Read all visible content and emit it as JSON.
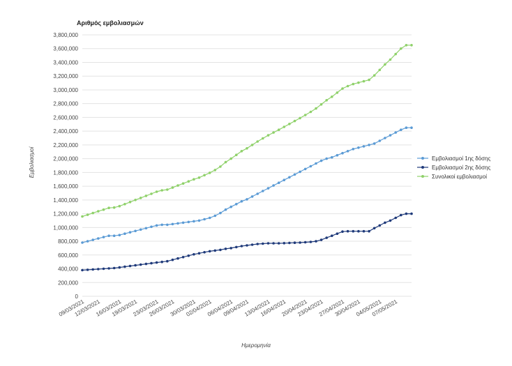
{
  "chart_data": {
    "type": "line",
    "title": "Αριθμός εμβολιασμών",
    "xlabel": "Ημερομηνία",
    "ylabel": "Εμβολιασμοί",
    "ylim": [
      0,
      3800000
    ],
    "yticks": [
      0,
      200000,
      400000,
      600000,
      800000,
      1000000,
      1200000,
      1400000,
      1600000,
      1800000,
      2000000,
      2200000,
      2400000,
      2600000,
      2800000,
      3000000,
      3200000,
      3400000,
      3600000,
      3800000
    ],
    "ytick_labels": [
      "0",
      "200,000",
      "400,000",
      "600,000",
      "800,000",
      "1,000,000",
      "1,200,000",
      "1,400,000",
      "1,600,000",
      "1,800,000",
      "2,000,000",
      "2,200,000",
      "2,400,000",
      "2,600,000",
      "2,800,000",
      "3,000,000",
      "3,200,000",
      "3,400,000",
      "3,600,000",
      "3,800,000"
    ],
    "grid": true,
    "legend_position": "right",
    "x": [
      "2021-03-09",
      "2021-03-10",
      "2021-03-11",
      "2021-03-12",
      "2021-03-13",
      "2021-03-14",
      "2021-03-15",
      "2021-03-16",
      "2021-03-17",
      "2021-03-18",
      "2021-03-19",
      "2021-03-20",
      "2021-03-21",
      "2021-03-22",
      "2021-03-23",
      "2021-03-24",
      "2021-03-25",
      "2021-03-26",
      "2021-03-27",
      "2021-03-28",
      "2021-03-29",
      "2021-03-30",
      "2021-03-31",
      "2021-04-01",
      "2021-04-02",
      "2021-04-03",
      "2021-04-04",
      "2021-04-05",
      "2021-04-06",
      "2021-04-07",
      "2021-04-08",
      "2021-04-09",
      "2021-04-10",
      "2021-04-11",
      "2021-04-12",
      "2021-04-13",
      "2021-04-14",
      "2021-04-15",
      "2021-04-16",
      "2021-04-17",
      "2021-04-18",
      "2021-04-19",
      "2021-04-20",
      "2021-04-21",
      "2021-04-22",
      "2021-04-23",
      "2021-04-24",
      "2021-04-25",
      "2021-04-26",
      "2021-04-27",
      "2021-04-28",
      "2021-04-29",
      "2021-04-30",
      "2021-05-01",
      "2021-05-02",
      "2021-05-03",
      "2021-05-04",
      "2021-05-05",
      "2021-05-06",
      "2021-05-07",
      "2021-05-08",
      "2021-05-09",
      "2021-05-10"
    ],
    "x_tick_labels": [
      "09/03/2021",
      "12/03/2021",
      "16/03/2021",
      "19/03/2021",
      "23/03/2021",
      "26/03/2021",
      "30/03/2021",
      "02/04/2021",
      "06/04/2021",
      "09/04/2021",
      "13/04/2021",
      "16/04/2021",
      "20/04/2021",
      "23/04/2021",
      "27/04/2021",
      "30/04/2021",
      "04/05/2021",
      "07/05/2021"
    ],
    "x_tick_dates": [
      "2021-03-09",
      "2021-03-12",
      "2021-03-16",
      "2021-03-19",
      "2021-03-23",
      "2021-03-26",
      "2021-03-30",
      "2021-04-02",
      "2021-04-06",
      "2021-04-09",
      "2021-04-13",
      "2021-04-16",
      "2021-04-20",
      "2021-04-23",
      "2021-04-27",
      "2021-04-30",
      "2021-05-04",
      "2021-05-07"
    ],
    "series": [
      {
        "name": "Εμβολιασμοί 1ης δόσης",
        "color": "#5b9bd5",
        "values": [
          780000,
          800000,
          820000,
          840000,
          860000,
          880000,
          880000,
          890000,
          910000,
          930000,
          950000,
          970000,
          990000,
          1010000,
          1030000,
          1040000,
          1040000,
          1050000,
          1060000,
          1070000,
          1080000,
          1090000,
          1100000,
          1120000,
          1140000,
          1170000,
          1210000,
          1260000,
          1300000,
          1340000,
          1380000,
          1410000,
          1450000,
          1490000,
          1530000,
          1570000,
          1610000,
          1650000,
          1690000,
          1730000,
          1770000,
          1810000,
          1850000,
          1890000,
          1930000,
          1970000,
          2000000,
          2020000,
          2050000,
          2080000,
          2110000,
          2140000,
          2160000,
          2180000,
          2200000,
          2220000,
          2260000,
          2300000,
          2340000,
          2380000,
          2420000,
          2450000,
          2450000
        ]
      },
      {
        "name": "Εμβολιασμοί 2ης δόσης",
        "color": "#1f3a7a",
        "values": [
          380000,
          385000,
          390000,
          395000,
          400000,
          405000,
          410000,
          420000,
          430000,
          440000,
          450000,
          460000,
          470000,
          480000,
          490000,
          500000,
          510000,
          530000,
          550000,
          570000,
          590000,
          610000,
          625000,
          640000,
          655000,
          665000,
          675000,
          690000,
          700000,
          715000,
          730000,
          740000,
          750000,
          760000,
          765000,
          770000,
          770000,
          770000,
          772000,
          775000,
          778000,
          780000,
          785000,
          790000,
          800000,
          820000,
          850000,
          880000,
          910000,
          940000,
          945000,
          945000,
          945000,
          945000,
          945000,
          990000,
          1030000,
          1070000,
          1100000,
          1140000,
          1180000,
          1200000,
          1200000
        ]
      },
      {
        "name": "Συνολικοί εμβολιασμοί",
        "color": "#8fd16a",
        "values": [
          1160000,
          1185000,
          1210000,
          1235000,
          1260000,
          1285000,
          1290000,
          1310000,
          1340000,
          1370000,
          1400000,
          1430000,
          1460000,
          1490000,
          1520000,
          1540000,
          1550000,
          1580000,
          1610000,
          1640000,
          1670000,
          1700000,
          1725000,
          1760000,
          1795000,
          1835000,
          1885000,
          1950000,
          2000000,
          2055000,
          2110000,
          2150000,
          2200000,
          2250000,
          2295000,
          2340000,
          2380000,
          2420000,
          2462000,
          2505000,
          2548000,
          2590000,
          2635000,
          2680000,
          2730000,
          2790000,
          2850000,
          2900000,
          2960000,
          3020000,
          3055000,
          3085000,
          3105000,
          3125000,
          3145000,
          3210000,
          3290000,
          3370000,
          3440000,
          3520000,
          3600000,
          3650000,
          3650000
        ]
      }
    ]
  }
}
